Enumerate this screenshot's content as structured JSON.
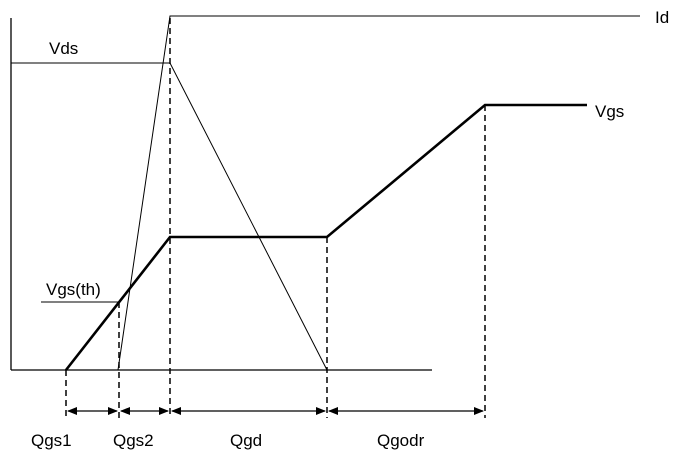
{
  "labels": {
    "id": "Id",
    "vds": "Vds",
    "vgs": "Vgs",
    "vgs_th": "Vgs(th)",
    "qgs1": "Qgs1",
    "qgs2": "Qgs2",
    "qgd": "Qgd",
    "qgodr": "Qgodr"
  },
  "colors": {
    "line": "#000000",
    "background": "#ffffff"
  }
}
